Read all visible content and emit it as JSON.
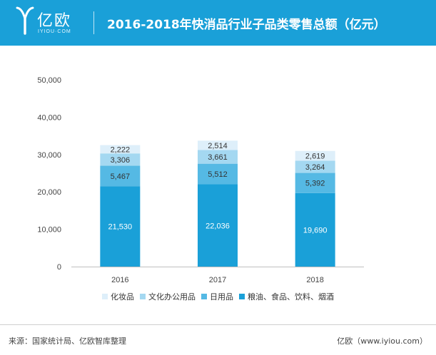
{
  "header": {
    "logo_cn": "亿欧",
    "logo_en": "IYIOU·COM",
    "title": "2016-2018年快消品行业子品类零售总额（亿元）"
  },
  "chart_data": {
    "type": "bar",
    "stacked": true,
    "title": "2016-2018年快消品行业子品类零售总额（亿元）",
    "categories": [
      "2016",
      "2017",
      "2018"
    ],
    "series": [
      {
        "name": "粮油、食品、饮料、烟酒",
        "values": [
          21530,
          22036,
          19690
        ],
        "labels": [
          "21,530",
          "22,036",
          "19,690"
        ],
        "color": "#1aa0d8"
      },
      {
        "name": "日用品",
        "values": [
          5467,
          5512,
          5392
        ],
        "labels": [
          "5,467",
          "5,512",
          "5,392"
        ],
        "color": "#55b9e4"
      },
      {
        "name": "文化办公用品",
        "values": [
          3306,
          3661,
          3264
        ],
        "labels": [
          "3,306",
          "3,661",
          "3,264"
        ],
        "color": "#a4d8f1"
      },
      {
        "name": "化妆品",
        "values": [
          2222,
          2514,
          2619
        ],
        "labels": [
          "2,222",
          "2,514",
          "2,619"
        ],
        "color": "#deeffa"
      }
    ],
    "ylim": [
      0,
      50000
    ],
    "yticks": [
      0,
      10000,
      20000,
      30000,
      40000,
      50000
    ],
    "ytick_labels": [
      "0",
      "10,000",
      "20,000",
      "30,000",
      "40,000",
      "50,000"
    ],
    "legend_order": [
      "化妆品",
      "文化办公用品",
      "日用品",
      "粮油、食品、饮料、烟酒"
    ],
    "legend_position": "bottom",
    "grid": false
  },
  "footer": {
    "source": "来源：国家统计局、亿欧智库整理",
    "brand": "亿欧（www.iyiou.com）"
  }
}
